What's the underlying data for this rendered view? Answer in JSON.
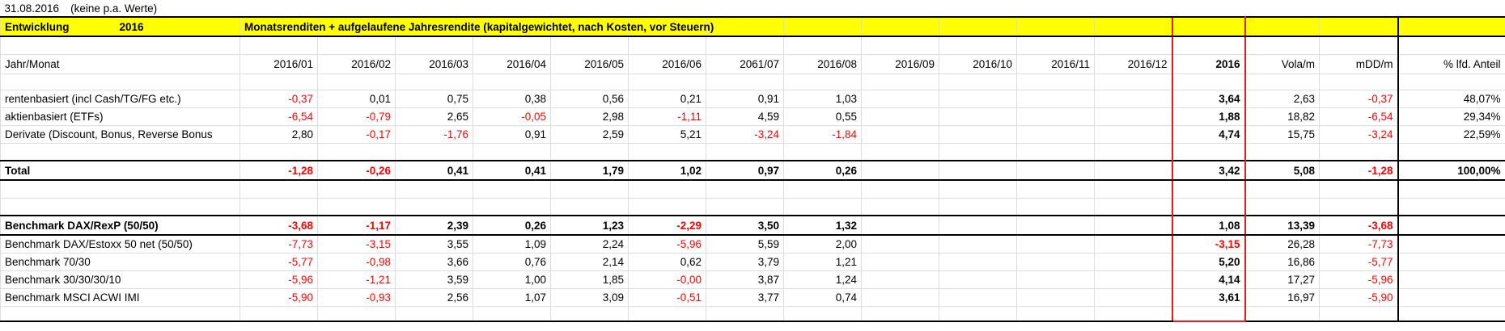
{
  "top_row": {
    "date": "31.08.2016",
    "note": "(keine p.a. Werte)"
  },
  "title_bar": {
    "label": "Entwicklung",
    "year": "2016",
    "description": "Monatsrenditen + aufgelaufene Jahresrendite (kapitalgewichtet, nach Kosten, vor Steuern)"
  },
  "header": {
    "label": "Jahr/Monat",
    "months": [
      "2016/01",
      "2016/02",
      "2016/03",
      "2016/04",
      "2016/05",
      "2016/06",
      "2061/07",
      "2016/08",
      "2016/09",
      "2016/10",
      "2016/11",
      "2016/12"
    ],
    "year": "2016",
    "vola": "Vola/m",
    "mdd": "mDD/m",
    "share": "% lfd. Anteil"
  },
  "negative_color": "#ff0000",
  "portfolio_rows": [
    {
      "label": "rentenbasiert (incl Cash/TG/FG etc.)",
      "months": [
        "-0,37",
        "0,01",
        "0,75",
        "0,38",
        "0,56",
        "0,21",
        "0,91",
        "1,03"
      ],
      "year": "3,64",
      "vola": "2,63",
      "mdd": "-0,37",
      "share": "48,07%"
    },
    {
      "label": "aktienbasiert (ETFs)",
      "months": [
        "-6,54",
        "-0,79",
        "2,65",
        "-0,05",
        "2,98",
        "-1,11",
        "4,59",
        "0,55"
      ],
      "year": "1,88",
      "vola": "18,82",
      "mdd": "-6,54",
      "share": "29,34%"
    },
    {
      "label": "Derivate (Discount, Bonus, Reverse Bonus",
      "months": [
        "2,80",
        "-0,17",
        "-1,76",
        "0,91",
        "2,59",
        "5,21",
        "-3,24",
        "-1,84"
      ],
      "year": "4,74",
      "vola": "15,75",
      "mdd": "-3,24",
      "share": "22,59%"
    }
  ],
  "total_row": {
    "label": "Total",
    "bold": true,
    "months": [
      "-1,28",
      "-0,26",
      "0,41",
      "0,41",
      "1,79",
      "1,02",
      "0,97",
      "0,26"
    ],
    "year": "3,42",
    "vola": "5,08",
    "mdd": "-1,28",
    "share": "100,00%"
  },
  "benchmark_main": {
    "label": "Benchmark DAX/RexP (50/50)",
    "bold": true,
    "months": [
      "-3,68",
      "-1,17",
      "2,39",
      "0,26",
      "1,23",
      "-2,29",
      "3,50",
      "1,32"
    ],
    "year": "1,08",
    "vola": "13,39",
    "mdd": "-3,68"
  },
  "benchmark_rows": [
    {
      "label": "Benchmark DAX/Estoxx 50 net (50/50)",
      "months": [
        "-7,73",
        "-3,15",
        "3,55",
        "1,09",
        "2,24",
        "-5,96",
        "5,59",
        "2,00"
      ],
      "year": "-3,15",
      "vola": "26,28",
      "mdd": "-7,73"
    },
    {
      "label": "Benchmark 70/30",
      "months": [
        "-5,77",
        "-0,98",
        "3,66",
        "0,76",
        "2,14",
        "0,62",
        "3,79",
        "1,21"
      ],
      "year": "5,20",
      "vola": "16,86",
      "mdd": "-5,77"
    },
    {
      "label": "Benchmark 30/30/30/10",
      "months": [
        "-5,96",
        "-1,21",
        "3,59",
        "1,00",
        "1,85",
        "-0,00",
        "3,87",
        "1,24"
      ],
      "year": "4,14",
      "vola": "17,27",
      "mdd": "-5,96"
    },
    {
      "label": "Benchmark MSCI ACWI IMI",
      "months": [
        "-5,90",
        "-0,93",
        "2,56",
        "1,07",
        "3,09",
        "-0,51",
        "3,77",
        "0,74"
      ],
      "year": "3,61",
      "vola": "16,97",
      "mdd": "-5,90"
    }
  ]
}
